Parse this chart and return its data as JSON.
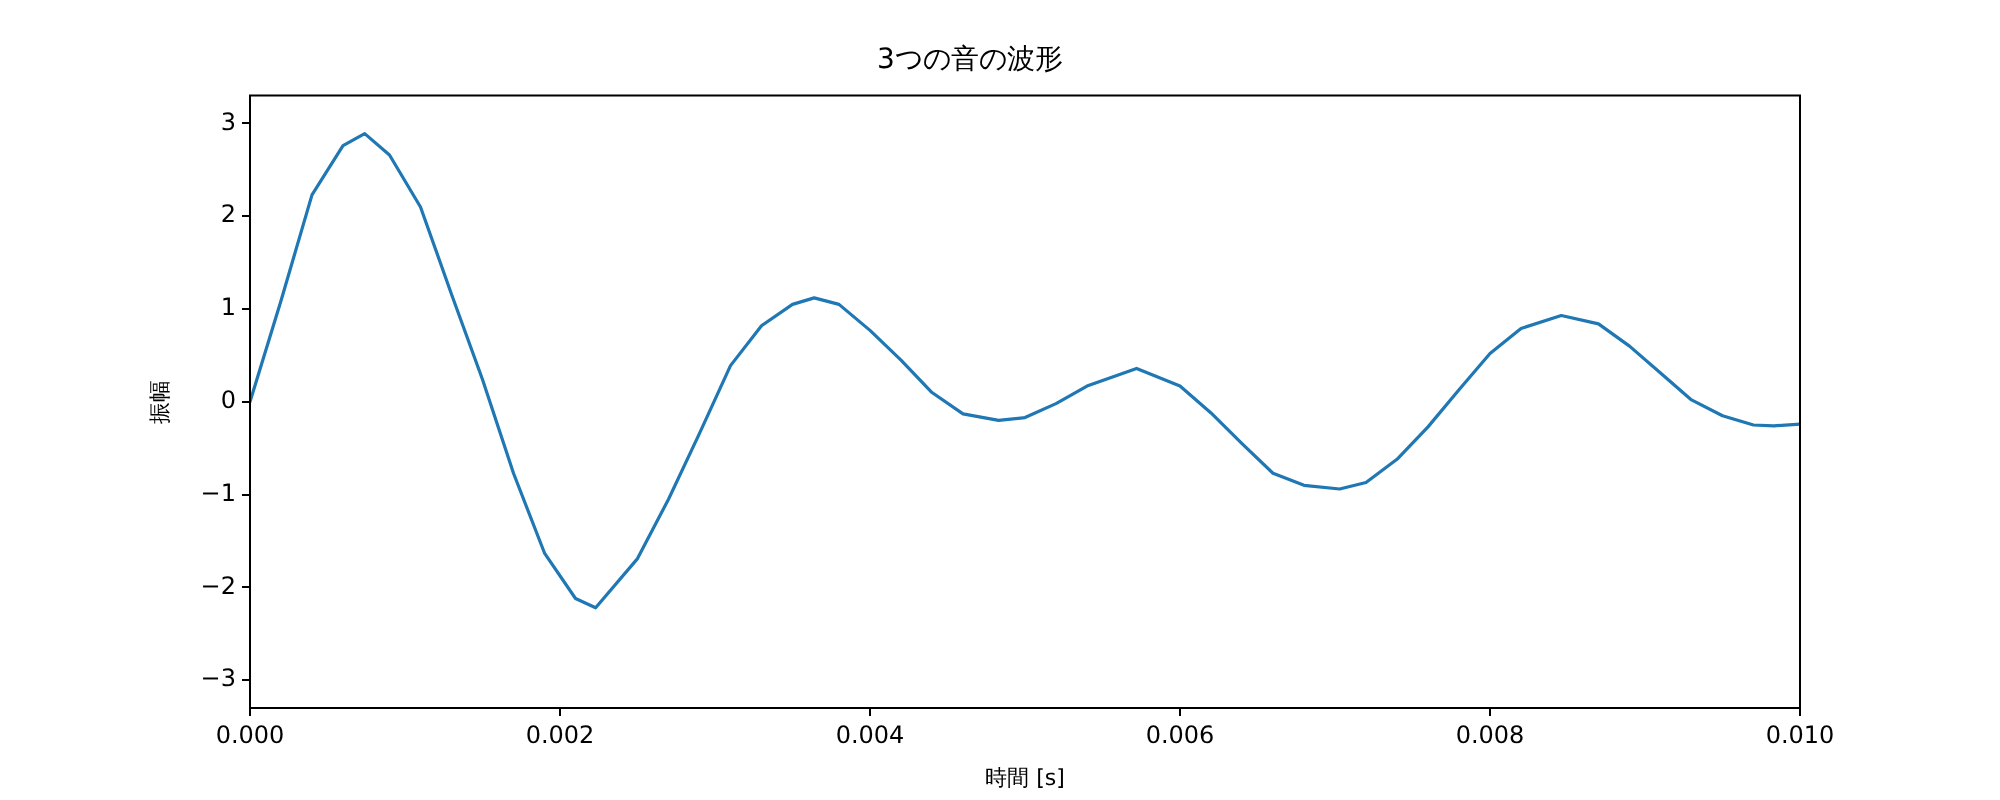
{
  "chart_data": {
    "type": "line",
    "title": "3つの音の波形",
    "xlabel": "時間 [s]",
    "ylabel": "振幅",
    "x": [
      0,
      0.0002,
      0.0004,
      0.0006,
      0.00074,
      0.0009,
      0.0011,
      0.0013,
      0.0015,
      0.0017,
      0.0019,
      0.0021,
      0.00223,
      0.0025,
      0.0027,
      0.0029,
      0.0031,
      0.0033,
      0.0035,
      0.00364,
      0.0038,
      0.004,
      0.0042,
      0.0044,
      0.0046,
      0.00483,
      0.005,
      0.0052,
      0.0054,
      0.00572,
      0.006,
      0.0062,
      0.0064,
      0.0066,
      0.0068,
      0.00703,
      0.0072,
      0.0074,
      0.0076,
      0.0078,
      0.008,
      0.0082,
      0.00846,
      0.0087,
      0.0089,
      0.0091,
      0.0093,
      0.0095,
      0.0097,
      0.00983,
      0.01
    ],
    "series": [
      {
        "color": "#1f77b4",
        "values": [
          0,
          1.09,
          2.23,
          2.76,
          2.89,
          2.66,
          2.1,
          1.16,
          0.24,
          -0.77,
          -1.63,
          -2.12,
          -2.22,
          -1.69,
          -1.05,
          -0.34,
          0.39,
          0.82,
          1.05,
          1.12,
          1.05,
          0.77,
          0.45,
          0.1,
          -0.13,
          -0.2,
          -0.17,
          -0.02,
          0.17,
          0.36,
          0.17,
          -0.12,
          -0.45,
          -0.77,
          -0.9,
          -0.94,
          -0.87,
          -0.62,
          -0.27,
          0.13,
          0.52,
          0.79,
          0.93,
          0.84,
          0.6,
          0.31,
          0.02,
          -0.15,
          -0.25,
          -0.26,
          -0.24
        ]
      }
    ],
    "xlim": [
      0,
      0.01
    ],
    "xticks": [
      {
        "value": 0,
        "label": "0.000"
      },
      {
        "value": 0.002,
        "label": "0.002"
      },
      {
        "value": 0.004,
        "label": "0.004"
      },
      {
        "value": 0.006,
        "label": "0.006"
      },
      {
        "value": 0.008,
        "label": "0.008"
      },
      {
        "value": 0.01,
        "label": "0.010"
      }
    ],
    "ylim": [
      -3.3,
      3.3
    ],
    "yticks": [
      {
        "value": -3,
        "label": "−3"
      },
      {
        "value": -2,
        "label": "−2"
      },
      {
        "value": -1,
        "label": "−1"
      },
      0,
      1,
      2,
      3
    ],
    "grid": false,
    "legend": false,
    "marker": "none",
    "line_style": "solid"
  }
}
